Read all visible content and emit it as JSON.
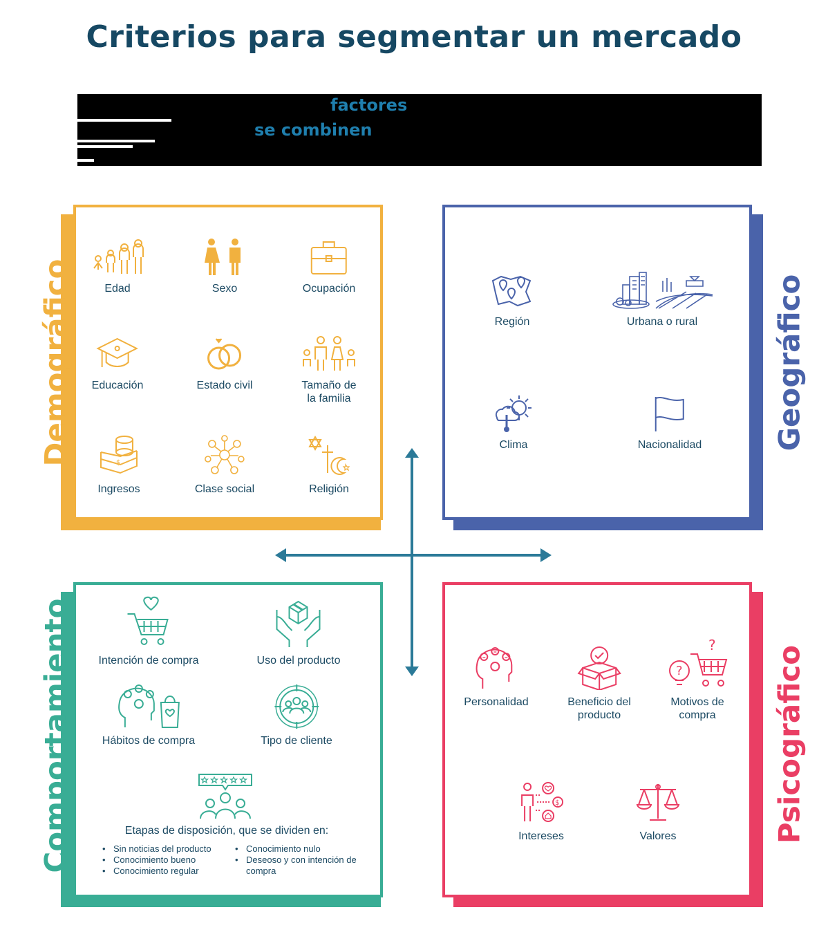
{
  "title": "Criterios para segmentar un mercado",
  "intro": {
    "highlight_1": "factores",
    "highlight_2": "se combinen"
  },
  "colors": {
    "demografico": "#f1b13f",
    "geografico": "#4a63aa",
    "comportamiento": "#39ad95",
    "psicografico": "#ea3e64",
    "axis": "#2b7a98",
    "title": "#164863"
  },
  "demografico": {
    "heading": "Demográfico",
    "items": [
      {
        "label": "Edad",
        "icon": "people-ages-icon"
      },
      {
        "label": "Sexo",
        "icon": "woman-man-icon"
      },
      {
        "label": "Ocupación",
        "icon": "briefcase-icon"
      },
      {
        "label": "Educación",
        "icon": "graduation-cap-icon"
      },
      {
        "label": "Estado civil",
        "icon": "wedding-rings-icon"
      },
      {
        "label": "Tamaño de\nla familia",
        "icon": "family-icon"
      },
      {
        "label": "Ingresos",
        "icon": "money-stack-icon"
      },
      {
        "label": "Clase social",
        "icon": "social-network-icon"
      },
      {
        "label": "Religión",
        "icon": "religion-symbols-icon"
      }
    ]
  },
  "geografico": {
    "heading": "Geográfico",
    "items": [
      {
        "label": "Región",
        "icon": "map-pins-icon"
      },
      {
        "label": "Urbana o rural",
        "icon": "city-countryside-icon"
      },
      {
        "label": "Clima",
        "icon": "weather-icon"
      },
      {
        "label": "Nacionalidad",
        "icon": "flag-icon"
      }
    ]
  },
  "comportamiento": {
    "heading": "Comportamiento",
    "items": [
      {
        "label": "Intención de compra",
        "icon": "cart-heart-icon"
      },
      {
        "label": "Uso del producto",
        "icon": "hands-box-icon"
      },
      {
        "label": "Hábitos de compra",
        "icon": "head-bag-icon"
      },
      {
        "label": "Tipo de cliente",
        "icon": "target-group-icon"
      }
    ],
    "stages": {
      "icon": "rating-group-icon",
      "title": "Etapas de disposición, que se dividen en:",
      "col1": [
        "Sin noticias del producto",
        "Conocimiento bueno",
        "Conocimiento regular"
      ],
      "col2": [
        "Conocimiento nulo",
        "Deseoso y con intención de compra"
      ]
    }
  },
  "psicografico": {
    "heading": "Psicográfico",
    "items": [
      {
        "label": "Personalidad",
        "icon": "head-emotions-icon"
      },
      {
        "label": "Beneficio del\nproducto",
        "icon": "box-check-icon"
      },
      {
        "label": "Motivos de\ncompra",
        "icon": "idea-cart-icon"
      },
      {
        "label": "Intereses",
        "icon": "person-interests-icon"
      },
      {
        "label": "Valores",
        "icon": "scales-icon"
      }
    ]
  }
}
